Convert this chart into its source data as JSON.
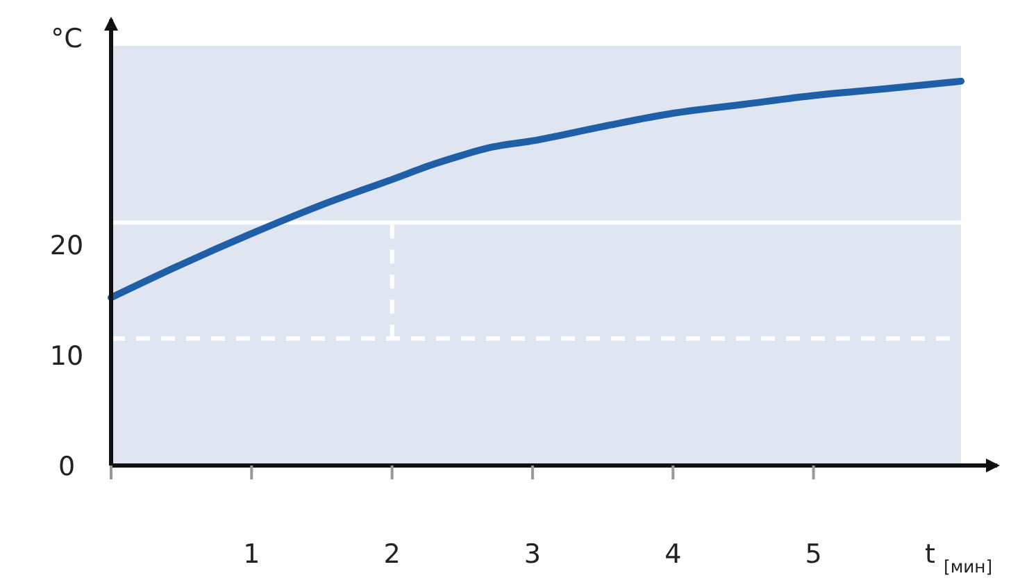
{
  "chart_data": {
    "type": "line",
    "ylabel": "°C",
    "xlabel": "t $_{[мин]}$",
    "x": [
      0,
      0.5,
      1,
      1.5,
      2,
      2.3,
      2.5,
      2.7,
      3,
      3.5,
      4,
      4.5,
      5,
      5.5,
      6.05
    ],
    "series": [
      {
        "color": "#1f5fa8",
        "values": [
          15.2,
          18.2,
          21,
          23.6,
          25.9,
          27.3,
          28.1,
          28.8,
          29.4,
          30.7,
          31.9,
          32.7,
          33.5,
          34.1,
          34.8
        ]
      }
    ],
    "xlim": [
      0,
      6.05
    ],
    "ylim": [
      0,
      38
    ],
    "xticks": [
      {
        "value": 0,
        "label": null
      },
      1,
      2,
      3,
      4,
      5
    ],
    "yticks": [
      0,
      10,
      20
    ],
    "ref_lines": [
      {
        "axis": "y",
        "value": 22,
        "color": "#ffffff",
        "line_style": "solid"
      },
      {
        "axis": "y",
        "value": 11.5,
        "color": "#ffffff",
        "line_style": "dashed"
      },
      {
        "axis": "x",
        "value": 2,
        "color": "#ffffff",
        "line_style": "dashed"
      }
    ],
    "grid": false,
    "marker": "none",
    "line_style": "solid"
  }
}
